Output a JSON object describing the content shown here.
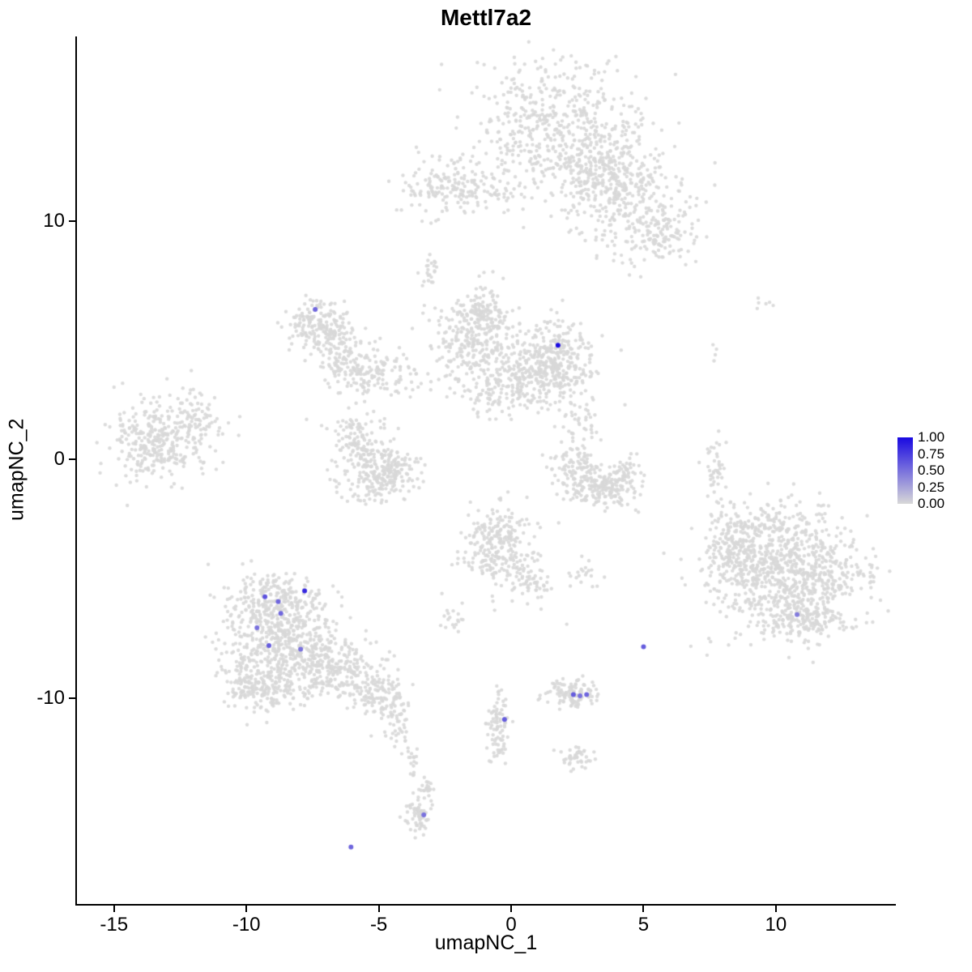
{
  "title": "Mettl7a2",
  "chart_data": {
    "type": "scatter",
    "title": "Mettl7a2",
    "xlabel": "umapNC_1",
    "ylabel": "umapNC_2",
    "xlim": [
      -16.4,
      14.5
    ],
    "ylim": [
      -18.6,
      17.75
    ],
    "xticks": [
      -15,
      -10,
      -5,
      0,
      5,
      10
    ],
    "yticks": [
      -10,
      0,
      10
    ],
    "grid": false,
    "legend": {
      "position": "right",
      "ticks": [
        "1.00",
        "0.75",
        "0.50",
        "0.25",
        "0.00"
      ],
      "tick_values": [
        1.0,
        0.75,
        0.5,
        0.25,
        0.0
      ]
    },
    "point_color_low": "#D8D8D8",
    "point_color_high": "#1909E1",
    "background_clusters": [
      {
        "name": "top-island-core",
        "cx": 1.6,
        "cy": 14.0,
        "sx": 1.7,
        "sy": 1.3,
        "n": 520
      },
      {
        "name": "top-island-mid",
        "cx": 3.3,
        "cy": 12.0,
        "sx": 0.9,
        "sy": 0.85,
        "n": 220
      },
      {
        "name": "top-island-arm",
        "cx": 4.8,
        "cy": 10.6,
        "sx": 1.1,
        "sy": 1.2,
        "n": 260
      },
      {
        "name": "top-island-tip",
        "cx": 5.6,
        "cy": 9.3,
        "sx": 0.6,
        "sy": 0.5,
        "n": 70
      },
      {
        "name": "top-left-blob",
        "cx": -2.5,
        "cy": 11.4,
        "sx": 0.95,
        "sy": 0.6,
        "n": 140
      },
      {
        "name": "top-bridge",
        "cx": -0.7,
        "cy": 11.1,
        "sx": 0.8,
        "sy": 0.35,
        "n": 50
      },
      {
        "name": "upper-strand",
        "cx": -3.1,
        "cy": 7.8,
        "sx": 0.2,
        "sy": 0.5,
        "n": 22
      },
      {
        "name": "hook-top",
        "cx": -7.3,
        "cy": 5.7,
        "sx": 0.55,
        "sy": 0.5,
        "n": 170
      },
      {
        "name": "hook-mid",
        "cx": -6.5,
        "cy": 4.4,
        "sx": 0.45,
        "sy": 0.7,
        "n": 110
      },
      {
        "name": "hook-bottom",
        "cx": -5.5,
        "cy": 3.7,
        "sx": 0.5,
        "sy": 0.45,
        "n": 90
      },
      {
        "name": "hook-bridge",
        "cx": -4.2,
        "cy": 3.6,
        "sx": 0.55,
        "sy": 0.5,
        "n": 45
      },
      {
        "name": "center-left",
        "cx": -1.3,
        "cy": 5.0,
        "sx": 0.8,
        "sy": 1.0,
        "n": 330
      },
      {
        "name": "center-right",
        "cx": 1.5,
        "cy": 4.1,
        "sx": 0.78,
        "sy": 0.85,
        "n": 380
      },
      {
        "name": "center-bottom",
        "cx": -0.1,
        "cy": 2.9,
        "sx": 0.92,
        "sy": 0.5,
        "n": 140
      },
      {
        "name": "center-top",
        "cx": -1.0,
        "cy": 6.1,
        "sx": 0.46,
        "sy": 0.4,
        "n": 60
      },
      {
        "name": "center-tail",
        "cx": 2.6,
        "cy": 1.4,
        "sx": 0.3,
        "sy": 0.7,
        "n": 40
      },
      {
        "name": "s-cluster-a",
        "cx": -5.7,
        "cy": 0.75,
        "sx": 0.6,
        "sy": 0.6,
        "n": 140
      },
      {
        "name": "s-cluster-b",
        "cx": -4.65,
        "cy": -0.35,
        "sx": 0.6,
        "sy": 0.5,
        "n": 140
      },
      {
        "name": "s-cluster-c",
        "cx": -5.3,
        "cy": -1.1,
        "sx": 0.72,
        "sy": 0.35,
        "n": 90
      },
      {
        "name": "mid-right-a",
        "cx": 2.5,
        "cy": -0.45,
        "sx": 0.45,
        "sy": 0.6,
        "n": 110
      },
      {
        "name": "mid-right-b",
        "cx": 3.45,
        "cy": -1.2,
        "sx": 0.55,
        "sy": 0.45,
        "n": 130
      },
      {
        "name": "mid-right-c",
        "cx": 4.35,
        "cy": -0.9,
        "sx": 0.35,
        "sy": 0.5,
        "n": 70
      },
      {
        "name": "far-left-core",
        "cx": -13.4,
        "cy": 0.9,
        "sx": 0.92,
        "sy": 0.85,
        "n": 330
      },
      {
        "name": "far-left-edge",
        "cx": -11.8,
        "cy": 1.7,
        "sx": 0.45,
        "sy": 0.5,
        "n": 60
      },
      {
        "name": "lower-middle-core",
        "cx": -0.5,
        "cy": -3.7,
        "sx": 0.68,
        "sy": 0.88,
        "n": 260
      },
      {
        "name": "lower-middle-tail",
        "cx": 0.7,
        "cy": -5.05,
        "sx": 0.38,
        "sy": 0.4,
        "n": 55
      },
      {
        "name": "lower-middle-spur",
        "cx": 2.75,
        "cy": -4.85,
        "sx": 0.38,
        "sy": 0.28,
        "n": 20
      },
      {
        "name": "small-pair",
        "cx": -2.2,
        "cy": -6.7,
        "sx": 0.25,
        "sy": 0.28,
        "n": 18
      },
      {
        "name": "bottomleft-top",
        "cx": -8.8,
        "cy": -6.05,
        "sx": 0.92,
        "sy": 0.68,
        "n": 280
      },
      {
        "name": "bottomleft-core",
        "cx": -8.5,
        "cy": -7.9,
        "sx": 1.22,
        "sy": 0.95,
        "n": 460
      },
      {
        "name": "bottomleft-low",
        "cx": -9.5,
        "cy": -9.45,
        "sx": 0.76,
        "sy": 0.55,
        "n": 180
      },
      {
        "name": "bottomleft-right",
        "cx": -6.5,
        "cy": -8.95,
        "sx": 0.92,
        "sy": 0.68,
        "n": 230
      },
      {
        "name": "bottomleft-tail",
        "cx": -5.0,
        "cy": -10.05,
        "sx": 0.55,
        "sy": 0.45,
        "n": 100
      },
      {
        "name": "bottomleft-strand",
        "cx": -4.2,
        "cy": -11.0,
        "sx": 0.25,
        "sy": 0.5,
        "n": 40
      },
      {
        "name": "bottomleft-drip",
        "cx": -3.7,
        "cy": -12.7,
        "sx": 0.18,
        "sy": 0.4,
        "n": 18
      },
      {
        "name": "right-core",
        "cx": 10.5,
        "cy": -4.7,
        "sx": 1.38,
        "sy": 1.2,
        "n": 850
      },
      {
        "name": "right-arm",
        "cx": 8.35,
        "cy": -3.85,
        "sx": 0.55,
        "sy": 0.85,
        "n": 180
      },
      {
        "name": "right-top",
        "cx": 9.7,
        "cy": -2.65,
        "sx": 0.76,
        "sy": 0.35,
        "n": 70
      },
      {
        "name": "right-bottom",
        "cx": 10.95,
        "cy": -6.7,
        "sx": 1.0,
        "sy": 0.4,
        "n": 140
      },
      {
        "name": "right-column",
        "cx": 7.75,
        "cy": -0.3,
        "sx": 0.2,
        "sy": 0.75,
        "n": 45
      },
      {
        "name": "right-speck-high",
        "cx": 9.6,
        "cy": 6.6,
        "sx": 0.25,
        "sy": 0.2,
        "n": 6
      },
      {
        "name": "right-speck-mid",
        "cx": 7.7,
        "cy": 4.2,
        "sx": 0.15,
        "sy": 0.3,
        "n": 4
      },
      {
        "name": "bottom-small",
        "cx": 2.3,
        "cy": -9.8,
        "sx": 0.52,
        "sy": 0.32,
        "n": 110
      },
      {
        "name": "bottom-strand",
        "cx": -0.5,
        "cy": -11.0,
        "sx": 0.2,
        "sy": 0.82,
        "n": 85
      },
      {
        "name": "bottom-speck",
        "cx": 2.4,
        "cy": -12.5,
        "sx": 0.3,
        "sy": 0.25,
        "n": 45
      },
      {
        "name": "bottom-blob",
        "cx": -3.5,
        "cy": -14.9,
        "sx": 0.28,
        "sy": 0.38,
        "n": 65
      },
      {
        "name": "bottom-blob-tail",
        "cx": -3.2,
        "cy": -13.7,
        "sx": 0.15,
        "sy": 0.3,
        "n": 20
      }
    ],
    "extra_background_points": [
      [
        -11.2,
        2.6
      ],
      [
        -12.4,
        3.0
      ],
      [
        2.1,
        -6.9
      ],
      [
        6.0,
        8.7
      ],
      [
        -0.3,
        7.6
      ],
      [
        4.3,
        2.3
      ],
      [
        7.4,
        -8.2
      ]
    ],
    "expressing_cells": [
      {
        "x": -7.4,
        "y": 6.3,
        "value": 0.55
      },
      {
        "x": 1.77,
        "y": 4.8,
        "value": 1.0
      },
      {
        "x": -9.3,
        "y": -5.75,
        "value": 0.65
      },
      {
        "x": -8.8,
        "y": -5.95,
        "value": 0.55
      },
      {
        "x": -7.8,
        "y": -5.5,
        "value": 0.85
      },
      {
        "x": -8.7,
        "y": -6.45,
        "value": 0.55
      },
      {
        "x": -9.6,
        "y": -7.05,
        "value": 0.5
      },
      {
        "x": -9.15,
        "y": -7.8,
        "value": 0.6
      },
      {
        "x": -7.95,
        "y": -7.95,
        "value": 0.5
      },
      {
        "x": 5.0,
        "y": -7.85,
        "value": 0.6
      },
      {
        "x": 10.8,
        "y": -6.5,
        "value": 0.45
      },
      {
        "x": 2.35,
        "y": -9.85,
        "value": 0.6
      },
      {
        "x": 2.6,
        "y": -9.9,
        "value": 0.5
      },
      {
        "x": 2.85,
        "y": -9.85,
        "value": 0.55
      },
      {
        "x": -0.25,
        "y": -10.9,
        "value": 0.6
      },
      {
        "x": -3.3,
        "y": -14.9,
        "value": 0.5
      },
      {
        "x": -6.05,
        "y": -16.25,
        "value": 0.55
      }
    ]
  }
}
